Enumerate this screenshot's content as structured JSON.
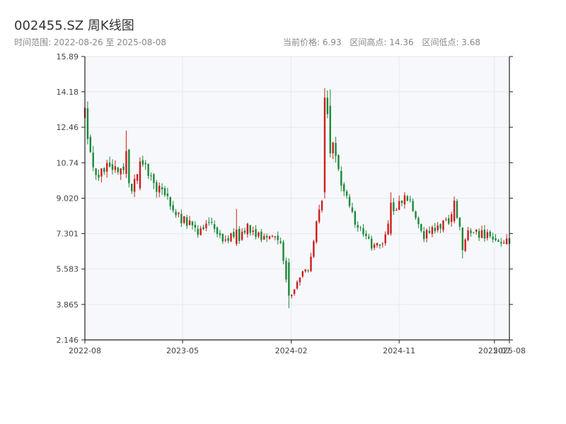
{
  "header": {
    "title": "002455.SZ 周K线图",
    "date_range": "时间范围: 2022-08-26 至 2025-08-08",
    "current_price": "当前价格: 6.93",
    "range_high": "区间高点: 14.36",
    "range_low": "区间低点: 3.68"
  },
  "colors": {
    "up": "#cc1f1f",
    "down": "#1a8a3a",
    "grid": "#e6e9ef",
    "plot_bg": "#f7f8fb",
    "axis": "#222222"
  },
  "chart_data": {
    "type": "candlestick",
    "title": "002455.SZ 周K线图",
    "ylim": [
      2.146,
      15.89
    ],
    "y_ticks": [
      "2.146",
      "3.865",
      "5.583",
      "7.301",
      "9.020",
      "10.74",
      "12.46",
      "14.18",
      "15.89"
    ],
    "x_range": [
      "2022-08-26",
      "2025-08-08"
    ],
    "x_ticks": [
      {
        "date": "2022-08-01",
        "label": "2022-08"
      },
      {
        "date": "2023-05-01",
        "label": "2023-05"
      },
      {
        "date": "2024-02-01",
        "label": "2024-02"
      },
      {
        "date": "2024-11-01",
        "label": "2024-11"
      },
      {
        "date": "2025-07-01",
        "label": "2025-07"
      },
      {
        "date": "2025-08-08",
        "label": "2025-08"
      }
    ],
    "current_price": 6.93,
    "range_high": 14.36,
    "range_low": 3.68,
    "close_path": [
      [
        "2022-08-26",
        13.2
      ],
      [
        "2022-09-09",
        11.0
      ],
      [
        "2022-09-30",
        10.0
      ],
      [
        "2022-10-21",
        10.8
      ],
      [
        "2022-11-11",
        10.6
      ],
      [
        "2022-12-02",
        10.3
      ],
      [
        "2022-12-23",
        9.6
      ],
      [
        "2023-01-13",
        10.8
      ],
      [
        "2023-02-03",
        10.2
      ],
      [
        "2023-02-24",
        9.4
      ],
      [
        "2023-03-17",
        9.3
      ],
      [
        "2023-04-07",
        8.4
      ],
      [
        "2023-04-28",
        8.0
      ],
      [
        "2023-05-19",
        7.8
      ],
      [
        "2023-06-09",
        7.3
      ],
      [
        "2023-06-30",
        7.8
      ],
      [
        "2023-07-21",
        7.6
      ],
      [
        "2023-08-11",
        7.0
      ],
      [
        "2023-09-01",
        7.2
      ],
      [
        "2023-09-22",
        7.0
      ],
      [
        "2023-10-13",
        7.6
      ],
      [
        "2023-11-03",
        7.3
      ],
      [
        "2023-11-24",
        7.1
      ],
      [
        "2023-12-15",
        7.2
      ],
      [
        "2024-01-05",
        6.8
      ],
      [
        "2024-01-19",
        5.0
      ],
      [
        "2024-02-02",
        4.4
      ],
      [
        "2024-02-23",
        5.3
      ],
      [
        "2024-03-15",
        5.6
      ],
      [
        "2024-04-05",
        7.8
      ],
      [
        "2024-04-19",
        8.8
      ],
      [
        "2024-04-26",
        13.5
      ],
      [
        "2024-05-10",
        12.8
      ],
      [
        "2024-05-24",
        11.0
      ],
      [
        "2024-06-07",
        9.8
      ],
      [
        "2024-06-28",
        8.6
      ],
      [
        "2024-07-19",
        7.6
      ],
      [
        "2024-08-09",
        7.0
      ],
      [
        "2024-08-30",
        6.6
      ],
      [
        "2024-09-20",
        7.0
      ],
      [
        "2024-10-11",
        8.3
      ],
      [
        "2024-10-25",
        8.4
      ],
      [
        "2024-11-08",
        8.9
      ],
      [
        "2024-11-22",
        9.0
      ],
      [
        "2024-12-13",
        8.2
      ],
      [
        "2025-01-03",
        7.2
      ],
      [
        "2025-01-24",
        7.5
      ],
      [
        "2025-02-14",
        7.6
      ],
      [
        "2025-03-07",
        8.0
      ],
      [
        "2025-03-28",
        8.2
      ],
      [
        "2025-04-11",
        7.1
      ],
      [
        "2025-05-02",
        7.4
      ],
      [
        "2025-05-23",
        7.3
      ],
      [
        "2025-06-13",
        7.2
      ],
      [
        "2025-07-04",
        6.9
      ],
      [
        "2025-07-25",
        7.0
      ],
      [
        "2025-08-08",
        6.93
      ]
    ],
    "spikes": [
      [
        "2022-08-26",
        12.9,
        13.4,
        11.0,
        13.4
      ],
      [
        "2022-12-09",
        10.2,
        11.3,
        10.0,
        12.3
      ],
      [
        "2023-01-13",
        9.5,
        10.8,
        9.4,
        11.0
      ],
      [
        "2023-09-15",
        6.8,
        7.5,
        6.7,
        8.5
      ],
      [
        "2024-01-26",
        5.9,
        4.3,
        3.68,
        6.1
      ],
      [
        "2024-04-26",
        9.3,
        13.9,
        9.0,
        14.36
      ],
      [
        "2024-05-10",
        13.5,
        11.2,
        11.0,
        14.3
      ],
      [
        "2024-10-11",
        7.3,
        8.8,
        7.2,
        9.3
      ],
      [
        "2025-03-21",
        7.9,
        8.9,
        7.8,
        9.1
      ],
      [
        "2025-04-11",
        7.6,
        6.5,
        6.1,
        7.6
      ]
    ]
  }
}
